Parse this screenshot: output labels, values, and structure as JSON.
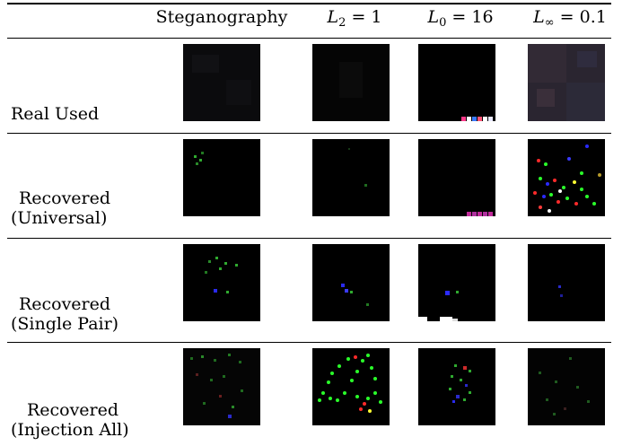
{
  "columns": [
    {
      "id": "steg",
      "label": "Steganography"
    },
    {
      "id": "l2",
      "var": "L",
      "sub": "2",
      "op": "=",
      "value": "1"
    },
    {
      "id": "l0",
      "var": "L",
      "sub": "0",
      "op": "=",
      "value": "16"
    },
    {
      "id": "linf",
      "var": "L",
      "sub": "∞",
      "op": "=",
      "value": "0.1"
    }
  ],
  "rows": [
    {
      "label_line1": "Real Used",
      "label_line2": ""
    },
    {
      "label_line1": "Recovered",
      "label_line2": "(Universal)"
    },
    {
      "label_line1": "Recovered",
      "label_line2": "(Single Pair)"
    },
    {
      "label_line1": "Recovered",
      "label_line2": "(Injection All)"
    }
  ]
}
